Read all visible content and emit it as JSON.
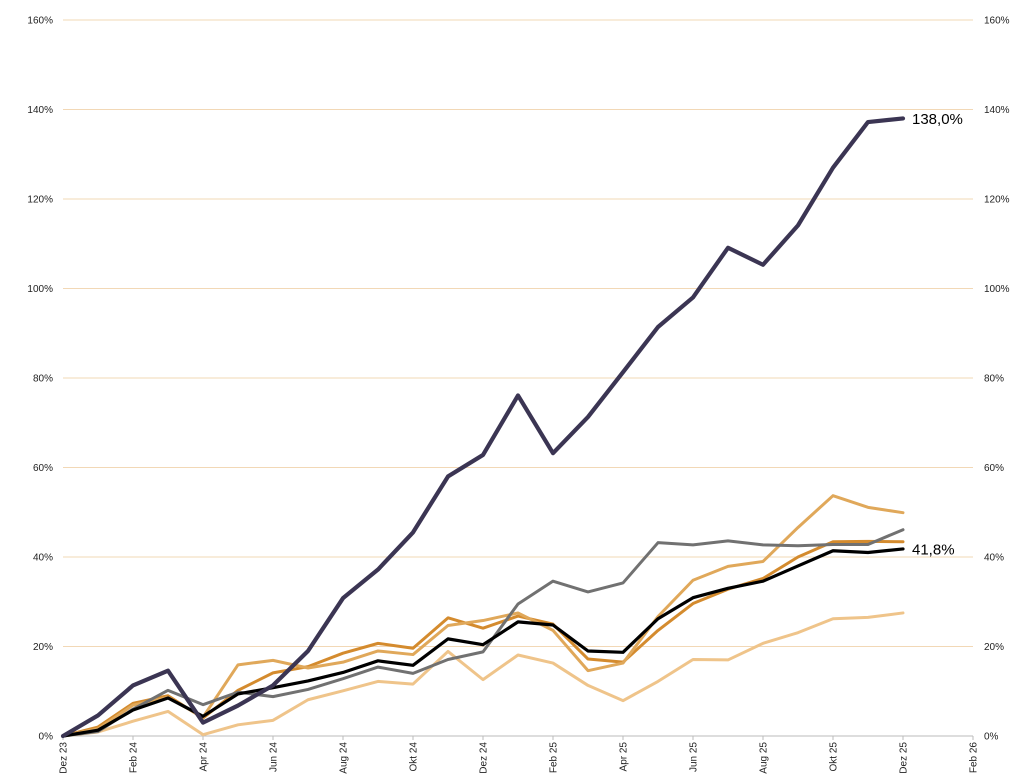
{
  "chart_data": {
    "type": "line",
    "title": "",
    "xlabel": "",
    "ylabel": "",
    "x_ticks": [
      "Dez 23",
      "Feb 24",
      "Apr 24",
      "Jun 24",
      "Aug 24",
      "Okt 24",
      "Dez 24",
      "Feb 25",
      "Apr 25",
      "Jun 25",
      "Aug 25",
      "Okt 25",
      "Dez 25",
      "Feb 26"
    ],
    "y_ticks": [
      "0%",
      "20%",
      "40%",
      "60%",
      "80%",
      "100%",
      "120%",
      "140%",
      "160%"
    ],
    "ylim": [
      0,
      160
    ],
    "y_unit": "%",
    "grid": "horizontal",
    "x": [
      "Dez 23",
      "Jan 24",
      "Feb 24",
      "Mrz 24",
      "Apr 24",
      "Mai 24",
      "Jun 24",
      "Jul 24",
      "Aug 24",
      "Sep 24",
      "Okt 24",
      "Nov 24",
      "Dez 24",
      "Jan 25",
      "Feb 25",
      "Mrz 25",
      "Apr 25",
      "Mai 25",
      "Jun 25",
      "Jul 25",
      "Aug 25",
      "Sep 25",
      "Okt 25",
      "Nov 25",
      "Dez 25"
    ],
    "series": [
      {
        "color": "#3b3553",
        "values": [
          0,
          4.6,
          11.3,
          14.6,
          3.0,
          6.8,
          11.3,
          19.0,
          30.8,
          37.2,
          45.5,
          58.0,
          62.8,
          76.1,
          63.2,
          71.3,
          81.3,
          91.4,
          98.0,
          109.1,
          105.3,
          114.1,
          127.0,
          137.2,
          138.0
        ],
        "end_label": "138,0%"
      },
      {
        "color": "#000000",
        "values": [
          0,
          1.3,
          5.8,
          8.5,
          4.4,
          9.4,
          10.8,
          12.3,
          14.2,
          16.8,
          15.8,
          21.7,
          20.4,
          25.5,
          24.8,
          19.0,
          18.7,
          26.2,
          30.9,
          33.0,
          34.6,
          38.0,
          41.4,
          41.0,
          41.8
        ],
        "end_label": "41,8%"
      },
      {
        "color": "#717171",
        "values": [
          0,
          1.0,
          6.0,
          10.2,
          7.0,
          9.8,
          8.8,
          10.4,
          12.8,
          15.4,
          14.0,
          17.1,
          18.8,
          29.5,
          34.6,
          32.2,
          34.2,
          43.2,
          42.7,
          43.6,
          42.7,
          42.5,
          42.8,
          42.8,
          46.1
        ]
      },
      {
        "color": "#e0a85a",
        "values": [
          0,
          1.6,
          6.9,
          8.6,
          4.2,
          15.9,
          16.9,
          15.2,
          16.5,
          19.0,
          18.2,
          24.7,
          25.8,
          27.5,
          23.6,
          14.6,
          16.3,
          26.7,
          34.8,
          37.9,
          39.0,
          46.6,
          53.7,
          51.1,
          49.9
        ]
      },
      {
        "color": "#d48b2e",
        "values": [
          0,
          2.0,
          7.3,
          9.0,
          4.0,
          10.2,
          14.1,
          15.5,
          18.5,
          20.7,
          19.6,
          26.4,
          24.1,
          26.8,
          25.0,
          17.2,
          16.5,
          23.6,
          29.6,
          32.8,
          35.2,
          40.0,
          43.4,
          43.5,
          43.4
        ]
      },
      {
        "color": "#efc48a",
        "values": [
          0,
          0.9,
          3.3,
          5.5,
          0.3,
          2.5,
          3.5,
          8.1,
          10.1,
          12.2,
          11.6,
          18.9,
          12.6,
          18.1,
          16.3,
          11.3,
          7.9,
          12.2,
          17.1,
          17.0,
          20.7,
          23.1,
          26.2,
          26.5,
          27.5
        ]
      }
    ]
  }
}
